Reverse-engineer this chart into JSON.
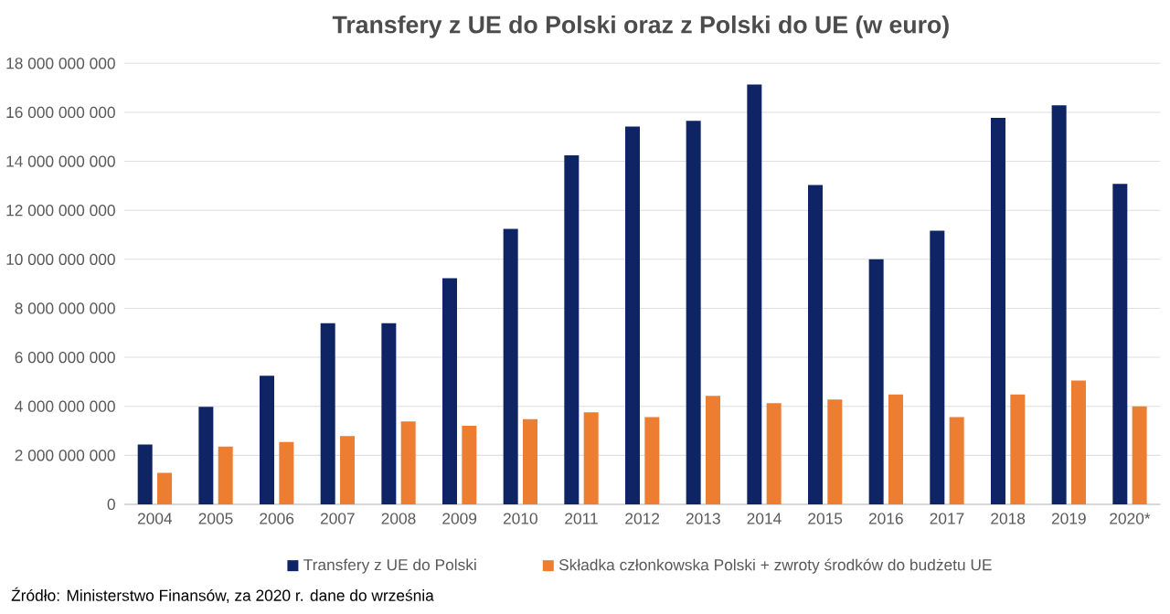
{
  "chart_data": {
    "type": "bar",
    "title": "Transfery z UE do Polski oraz z Polski do UE (w euro)",
    "categories": [
      "2004",
      "2005",
      "2006",
      "2007",
      "2008",
      "2009",
      "2010",
      "2011",
      "2012",
      "2013",
      "2014",
      "2015",
      "2016",
      "2017",
      "2018",
      "2019",
      "2020*"
    ],
    "series": [
      {
        "name": "Transfery z UE do Polski",
        "color": "#0e2464",
        "values": [
          2440000000,
          3980000000,
          5250000000,
          7390000000,
          7390000000,
          9230000000,
          11240000000,
          14250000000,
          15420000000,
          15650000000,
          17140000000,
          13030000000,
          10000000000,
          11170000000,
          15770000000,
          16290000000,
          13080000000
        ]
      },
      {
        "name": "Składka członkowska Polski + zwroty środków do budżetu UE",
        "color": "#ed7d31",
        "values": [
          1290000000,
          2360000000,
          2540000000,
          2790000000,
          3380000000,
          3210000000,
          3480000000,
          3760000000,
          3560000000,
          4430000000,
          4130000000,
          4280000000,
          4480000000,
          3560000000,
          4480000000,
          5050000000,
          4000000000
        ]
      }
    ],
    "ylim": [
      0,
      18000000000
    ],
    "yticks": [
      {
        "value": 0,
        "label": "0"
      },
      {
        "value": 2000000000,
        "label": "2 000 000 000"
      },
      {
        "value": 4000000000,
        "label": "4 000 000 000"
      },
      {
        "value": 6000000000,
        "label": "6 000 000 000"
      },
      {
        "value": 8000000000,
        "label": "8 000 000 000"
      },
      {
        "value": 10000000000,
        "label": "10 000 000 000"
      },
      {
        "value": 12000000000,
        "label": "12 000 000 000"
      },
      {
        "value": 14000000000,
        "label": "14 000 000 000"
      },
      {
        "value": 16000000000,
        "label": "16 000 000 000"
      },
      {
        "value": 18000000000,
        "label": "18 000 000 000"
      }
    ],
    "grid": "y",
    "legend": "bottom",
    "annotations": [
      "Źródło: Ministerstwo Finansów, za 2020 r. dane do września"
    ]
  }
}
